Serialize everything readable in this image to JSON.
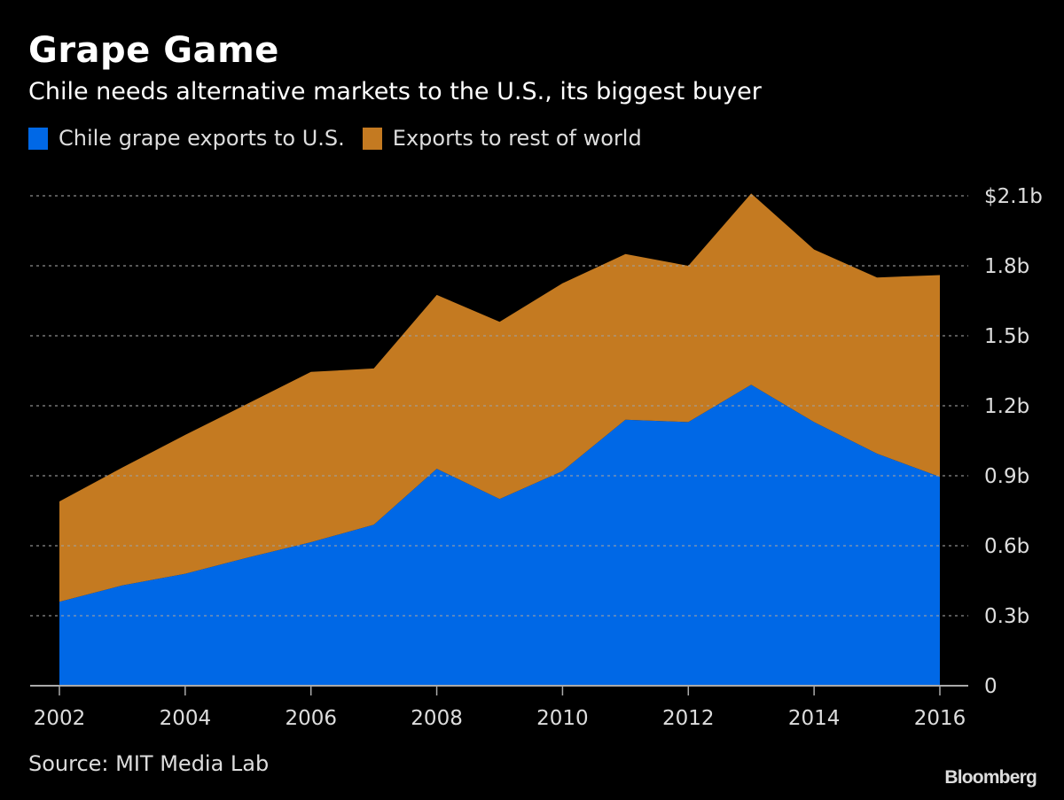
{
  "header": {
    "title": "Grape Game",
    "subtitle": "Chile needs alternative markets to the U.S., its biggest buyer"
  },
  "legend": [
    {
      "label": "Chile grape exports to U.S.",
      "color": "#0068e6"
    },
    {
      "label": "Exports to rest of world",
      "color": "#c47a21"
    }
  ],
  "footer": {
    "source": "Source: MIT Media Lab",
    "brand": "Bloomberg"
  },
  "chart_data": {
    "type": "area",
    "stacked": true,
    "title": "Grape Game",
    "subtitle": "Chile needs alternative markets to the U.S., its biggest buyer",
    "xlabel": "",
    "ylabel": "",
    "x": [
      2002,
      2003,
      2004,
      2005,
      2006,
      2007,
      2008,
      2009,
      2010,
      2011,
      2012,
      2013,
      2014,
      2015,
      2016
    ],
    "series": [
      {
        "name": "Chile grape exports to U.S.",
        "color": "#0068e6",
        "values": [
          0.36,
          0.43,
          0.48,
          0.55,
          0.615,
          0.69,
          0.93,
          0.8,
          0.92,
          1.14,
          1.13,
          1.29,
          1.13,
          0.995,
          0.895
        ]
      },
      {
        "name": "Exports to rest of world",
        "color": "#c47a21",
        "values": [
          0.43,
          0.505,
          0.595,
          0.66,
          0.73,
          0.67,
          0.745,
          0.76,
          0.805,
          0.71,
          0.67,
          0.82,
          0.74,
          0.755,
          0.865
        ]
      }
    ],
    "totals": [
      0.79,
      0.935,
      1.075,
      1.21,
      1.345,
      1.36,
      1.675,
      1.56,
      1.725,
      1.85,
      1.8,
      2.11,
      1.87,
      1.75,
      1.76
    ],
    "ylim": [
      0,
      2.1
    ],
    "yticks": [
      0,
      0.3,
      0.6,
      0.9,
      1.2,
      1.5,
      1.8,
      2.1
    ],
    "ytick_labels": [
      "0",
      "0.3b",
      "0.6b",
      "0.9b",
      "1.2b",
      "1.5b",
      "1.8b",
      "$2.1b"
    ],
    "xticks": [
      2002,
      2004,
      2006,
      2008,
      2010,
      2012,
      2014,
      2016
    ],
    "xtick_labels": [
      "2002",
      "2004",
      "2006",
      "2008",
      "2010",
      "2012",
      "2014",
      "2016"
    ],
    "grid": true,
    "grid_style": "dotted",
    "yaxis_position": "right",
    "legend_position": "top-left",
    "unit": "USD billions"
  }
}
